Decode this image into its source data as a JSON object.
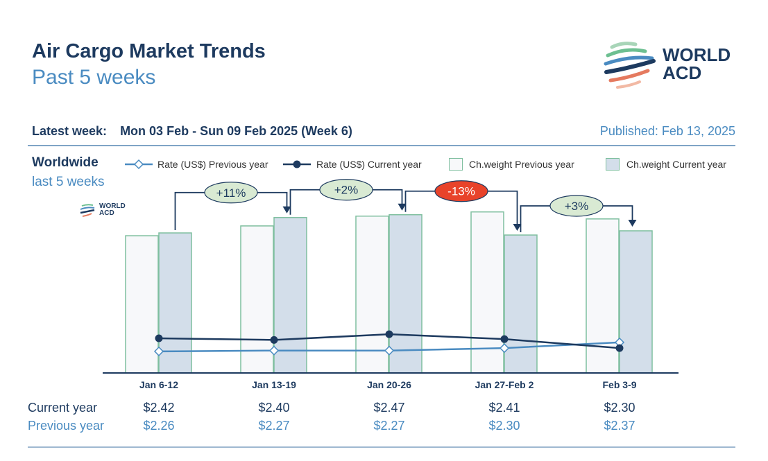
{
  "header": {
    "title": "Air Cargo Market Trends",
    "subtitle": "Past 5 weeks",
    "logo_text": [
      "WORLD",
      "ACD"
    ]
  },
  "info": {
    "latest_label": "Latest week:",
    "latest_value": "Mon 03 Feb - Sun 09 Feb 2025 (Week 6)",
    "published": "Published: Feb 13, 2025"
  },
  "region": {
    "name": "Worldwide",
    "period": "last 5 weeks"
  },
  "chart_data": {
    "type": "bar",
    "categories": [
      "Jan 6-12",
      "Jan 13-19",
      "Jan 20-26",
      "Jan 27-Feb 2",
      "Feb 3-9"
    ],
    "legend": [
      "Rate (US$) Previous year",
      "Rate (US$) Current year",
      "Ch.weight Previous year",
      "Ch.weight Current year"
    ],
    "series": [
      {
        "name": "Ch.weight Previous year",
        "kind": "bar",
        "values": [
          98,
          105,
          112,
          115,
          110
        ],
        "color": "#f7f8fa",
        "stroke": "#7fbf9f"
      },
      {
        "name": "Ch.weight Current year",
        "kind": "bar",
        "values": [
          100,
          111,
          113,
          98.5,
          101.5
        ],
        "color": "#d3deea",
        "stroke": "#7fbf9f"
      },
      {
        "name": "Rate (US$) Previous year",
        "kind": "line",
        "values": [
          2.26,
          2.27,
          2.27,
          2.3,
          2.37
        ],
        "color": "#4a8bc1",
        "marker": "open-diamond"
      },
      {
        "name": "Rate (US$) Current year",
        "kind": "line",
        "values": [
          2.42,
          2.4,
          2.47,
          2.41,
          2.3
        ],
        "color": "#1d3a5f",
        "marker": "filled-circle"
      }
    ],
    "changes": [
      {
        "label": "+11%",
        "color": "#d9ead3"
      },
      {
        "label": "+2%",
        "color": "#d9ead3"
      },
      {
        "label": "-13%",
        "color": "#e8432a"
      },
      {
        "label": "+3%",
        "color": "#d9ead3"
      }
    ],
    "row_labels": [
      "Current year",
      "Previous year"
    ],
    "current_text": [
      "$2.42",
      "$2.40",
      "$2.47",
      "$2.41",
      "$2.30"
    ],
    "previous_text": [
      "$2.26",
      "$2.27",
      "$2.27",
      "$2.30",
      "$2.37"
    ],
    "grid": false,
    "legend_position": "top"
  }
}
